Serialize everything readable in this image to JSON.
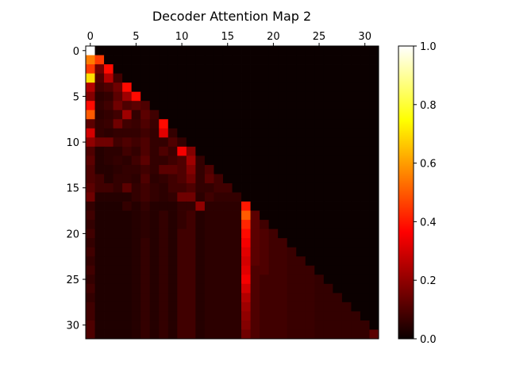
{
  "chart_data": {
    "type": "heatmap",
    "title": "Decoder Attention Map 2",
    "xlabel": "",
    "ylabel": "",
    "rows": 32,
    "cols": 32,
    "x_ticks": [
      0,
      5,
      10,
      15,
      20,
      25,
      30
    ],
    "y_ticks": [
      0,
      5,
      10,
      15,
      20,
      25,
      30
    ],
    "x_axis_position": "top",
    "colormap": "hot",
    "colorbar": {
      "min": 0.0,
      "max": 1.0,
      "ticks": [
        "0.0",
        "0.2",
        "0.4",
        "0.6",
        "0.8",
        "1.0"
      ]
    },
    "masking": "causal (upper triangle zero)",
    "values": [
      [
        1.0,
        0,
        0,
        0,
        0,
        0,
        0,
        0,
        0,
        0,
        0,
        0,
        0,
        0,
        0,
        0,
        0,
        0,
        0,
        0,
        0,
        0,
        0,
        0,
        0,
        0,
        0,
        0,
        0,
        0,
        0,
        0
      ],
      [
        0.55,
        0.45,
        0,
        0,
        0,
        0,
        0,
        0,
        0,
        0,
        0,
        0,
        0,
        0,
        0,
        0,
        0,
        0,
        0,
        0,
        0,
        0,
        0,
        0,
        0,
        0,
        0,
        0,
        0,
        0,
        0,
        0
      ],
      [
        0.45,
        0.15,
        0.38,
        0,
        0,
        0,
        0,
        0,
        0,
        0,
        0,
        0,
        0,
        0,
        0,
        0,
        0,
        0,
        0,
        0,
        0,
        0,
        0,
        0,
        0,
        0,
        0,
        0,
        0,
        0,
        0,
        0
      ],
      [
        0.7,
        0.1,
        0.25,
        0.08,
        0,
        0,
        0,
        0,
        0,
        0,
        0,
        0,
        0,
        0,
        0,
        0,
        0,
        0,
        0,
        0,
        0,
        0,
        0,
        0,
        0,
        0,
        0,
        0,
        0,
        0,
        0,
        0
      ],
      [
        0.25,
        0.08,
        0.1,
        0.15,
        0.38,
        0,
        0,
        0,
        0,
        0,
        0,
        0,
        0,
        0,
        0,
        0,
        0,
        0,
        0,
        0,
        0,
        0,
        0,
        0,
        0,
        0,
        0,
        0,
        0,
        0,
        0,
        0
      ],
      [
        0.18,
        0.05,
        0.06,
        0.12,
        0.22,
        0.38,
        0,
        0,
        0,
        0,
        0,
        0,
        0,
        0,
        0,
        0,
        0,
        0,
        0,
        0,
        0,
        0,
        0,
        0,
        0,
        0,
        0,
        0,
        0,
        0,
        0,
        0
      ],
      [
        0.38,
        0.06,
        0.08,
        0.15,
        0.1,
        0.12,
        0.1,
        0,
        0,
        0,
        0,
        0,
        0,
        0,
        0,
        0,
        0,
        0,
        0,
        0,
        0,
        0,
        0,
        0,
        0,
        0,
        0,
        0,
        0,
        0,
        0,
        0
      ],
      [
        0.5,
        0.05,
        0.06,
        0.08,
        0.22,
        0.06,
        0.12,
        0.08,
        0,
        0,
        0,
        0,
        0,
        0,
        0,
        0,
        0,
        0,
        0,
        0,
        0,
        0,
        0,
        0,
        0,
        0,
        0,
        0,
        0,
        0,
        0,
        0
      ],
      [
        0.12,
        0.06,
        0.07,
        0.15,
        0.08,
        0.07,
        0.1,
        0.07,
        0.38,
        0,
        0,
        0,
        0,
        0,
        0,
        0,
        0,
        0,
        0,
        0,
        0,
        0,
        0,
        0,
        0,
        0,
        0,
        0,
        0,
        0,
        0,
        0
      ],
      [
        0.3,
        0.06,
        0.05,
        0.06,
        0.06,
        0.06,
        0.08,
        0.06,
        0.32,
        0.06,
        0,
        0,
        0,
        0,
        0,
        0,
        0,
        0,
        0,
        0,
        0,
        0,
        0,
        0,
        0,
        0,
        0,
        0,
        0,
        0,
        0,
        0
      ],
      [
        0.2,
        0.15,
        0.15,
        0.08,
        0.1,
        0.08,
        0.1,
        0.06,
        0.06,
        0.1,
        0.06,
        0,
        0,
        0,
        0,
        0,
        0,
        0,
        0,
        0,
        0,
        0,
        0,
        0,
        0,
        0,
        0,
        0,
        0,
        0,
        0,
        0
      ],
      [
        0.1,
        0.04,
        0.05,
        0.05,
        0.08,
        0.06,
        0.1,
        0.06,
        0.1,
        0.07,
        0.35,
        0.18,
        0,
        0,
        0,
        0,
        0,
        0,
        0,
        0,
        0,
        0,
        0,
        0,
        0,
        0,
        0,
        0,
        0,
        0,
        0,
        0
      ],
      [
        0.12,
        0.04,
        0.05,
        0.06,
        0.05,
        0.08,
        0.12,
        0.06,
        0.06,
        0.08,
        0.1,
        0.22,
        0.06,
        0,
        0,
        0,
        0,
        0,
        0,
        0,
        0,
        0,
        0,
        0,
        0,
        0,
        0,
        0,
        0,
        0,
        0,
        0
      ],
      [
        0.1,
        0.04,
        0.04,
        0.05,
        0.06,
        0.06,
        0.08,
        0.06,
        0.12,
        0.12,
        0.1,
        0.18,
        0.06,
        0.1,
        0,
        0,
        0,
        0,
        0,
        0,
        0,
        0,
        0,
        0,
        0,
        0,
        0,
        0,
        0,
        0,
        0,
        0
      ],
      [
        0.1,
        0.08,
        0.04,
        0.06,
        0.06,
        0.05,
        0.1,
        0.05,
        0.06,
        0.08,
        0.1,
        0.15,
        0.06,
        0.12,
        0.08,
        0,
        0,
        0,
        0,
        0,
        0,
        0,
        0,
        0,
        0,
        0,
        0,
        0,
        0,
        0,
        0,
        0
      ],
      [
        0.12,
        0.08,
        0.08,
        0.06,
        0.12,
        0.06,
        0.08,
        0.06,
        0.05,
        0.08,
        0.08,
        0.1,
        0.06,
        0.06,
        0.08,
        0.08,
        0,
        0,
        0,
        0,
        0,
        0,
        0,
        0,
        0,
        0,
        0,
        0,
        0,
        0,
        0,
        0
      ],
      [
        0.15,
        0.04,
        0.04,
        0.04,
        0.04,
        0.06,
        0.08,
        0.06,
        0.05,
        0.06,
        0.15,
        0.15,
        0.05,
        0.08,
        0.06,
        0.06,
        0.06,
        0,
        0,
        0,
        0,
        0,
        0,
        0,
        0,
        0,
        0,
        0,
        0,
        0,
        0,
        0
      ],
      [
        0.06,
        0.03,
        0.03,
        0.03,
        0.06,
        0.04,
        0.06,
        0.04,
        0.04,
        0.04,
        0.06,
        0.06,
        0.2,
        0.05,
        0.05,
        0.05,
        0.05,
        0.4,
        0,
        0,
        0,
        0,
        0,
        0,
        0,
        0,
        0,
        0,
        0,
        0,
        0,
        0
      ],
      [
        0.08,
        0.03,
        0.03,
        0.03,
        0.03,
        0.04,
        0.05,
        0.04,
        0.06,
        0.04,
        0.06,
        0.08,
        0.04,
        0.05,
        0.05,
        0.05,
        0.05,
        0.5,
        0.12,
        0,
        0,
        0,
        0,
        0,
        0,
        0,
        0,
        0,
        0,
        0,
        0,
        0
      ],
      [
        0.06,
        0.03,
        0.03,
        0.03,
        0.03,
        0.04,
        0.05,
        0.04,
        0.06,
        0.04,
        0.06,
        0.08,
        0.04,
        0.05,
        0.05,
        0.05,
        0.05,
        0.42,
        0.12,
        0.08,
        0,
        0,
        0,
        0,
        0,
        0,
        0,
        0,
        0,
        0,
        0,
        0
      ],
      [
        0.08,
        0.03,
        0.03,
        0.03,
        0.03,
        0.04,
        0.05,
        0.04,
        0.06,
        0.04,
        0.08,
        0.08,
        0.04,
        0.05,
        0.05,
        0.05,
        0.05,
        0.38,
        0.12,
        0.1,
        0.08,
        0,
        0,
        0,
        0,
        0,
        0,
        0,
        0,
        0,
        0,
        0
      ],
      [
        0.06,
        0.03,
        0.03,
        0.03,
        0.03,
        0.04,
        0.06,
        0.04,
        0.06,
        0.04,
        0.08,
        0.08,
        0.04,
        0.05,
        0.05,
        0.05,
        0.05,
        0.35,
        0.12,
        0.1,
        0.08,
        0.08,
        0,
        0,
        0,
        0,
        0,
        0,
        0,
        0,
        0,
        0
      ],
      [
        0.08,
        0.03,
        0.03,
        0.03,
        0.03,
        0.04,
        0.06,
        0.04,
        0.06,
        0.04,
        0.08,
        0.08,
        0.04,
        0.05,
        0.05,
        0.05,
        0.05,
        0.32,
        0.12,
        0.1,
        0.08,
        0.08,
        0.07,
        0,
        0,
        0,
        0,
        0,
        0,
        0,
        0,
        0
      ],
      [
        0.06,
        0.03,
        0.03,
        0.03,
        0.03,
        0.04,
        0.06,
        0.04,
        0.06,
        0.04,
        0.08,
        0.08,
        0.04,
        0.05,
        0.05,
        0.05,
        0.05,
        0.3,
        0.12,
        0.1,
        0.08,
        0.08,
        0.07,
        0.07,
        0,
        0,
        0,
        0,
        0,
        0,
        0,
        0
      ],
      [
        0.08,
        0.03,
        0.03,
        0.03,
        0.03,
        0.04,
        0.06,
        0.04,
        0.06,
        0.04,
        0.08,
        0.08,
        0.04,
        0.05,
        0.05,
        0.05,
        0.05,
        0.32,
        0.1,
        0.1,
        0.08,
        0.08,
        0.07,
        0.07,
        0.07,
        0,
        0,
        0,
        0,
        0,
        0,
        0
      ],
      [
        0.06,
        0.03,
        0.03,
        0.03,
        0.03,
        0.04,
        0.06,
        0.04,
        0.06,
        0.04,
        0.08,
        0.08,
        0.04,
        0.05,
        0.05,
        0.05,
        0.05,
        0.35,
        0.1,
        0.08,
        0.08,
        0.08,
        0.07,
        0.07,
        0.07,
        0.06,
        0,
        0,
        0,
        0,
        0,
        0
      ],
      [
        0.08,
        0.03,
        0.03,
        0.03,
        0.03,
        0.04,
        0.06,
        0.04,
        0.06,
        0.04,
        0.08,
        0.08,
        0.04,
        0.05,
        0.05,
        0.05,
        0.05,
        0.3,
        0.1,
        0.08,
        0.08,
        0.08,
        0.07,
        0.07,
        0.07,
        0.06,
        0.06,
        0,
        0,
        0,
        0,
        0
      ],
      [
        0.06,
        0.03,
        0.03,
        0.03,
        0.03,
        0.04,
        0.06,
        0.04,
        0.06,
        0.04,
        0.08,
        0.08,
        0.04,
        0.05,
        0.05,
        0.05,
        0.05,
        0.25,
        0.1,
        0.08,
        0.08,
        0.08,
        0.07,
        0.07,
        0.07,
        0.06,
        0.06,
        0.06,
        0,
        0,
        0,
        0
      ],
      [
        0.08,
        0.03,
        0.03,
        0.03,
        0.03,
        0.04,
        0.06,
        0.04,
        0.06,
        0.04,
        0.08,
        0.08,
        0.04,
        0.05,
        0.05,
        0.05,
        0.05,
        0.22,
        0.1,
        0.08,
        0.08,
        0.08,
        0.07,
        0.07,
        0.07,
        0.06,
        0.06,
        0.06,
        0.06,
        0,
        0,
        0
      ],
      [
        0.08,
        0.03,
        0.03,
        0.03,
        0.03,
        0.04,
        0.06,
        0.04,
        0.06,
        0.04,
        0.08,
        0.08,
        0.04,
        0.05,
        0.05,
        0.05,
        0.05,
        0.2,
        0.1,
        0.08,
        0.08,
        0.08,
        0.07,
        0.07,
        0.07,
        0.06,
        0.06,
        0.06,
        0.06,
        0.06,
        0,
        0
      ],
      [
        0.1,
        0.03,
        0.03,
        0.03,
        0.03,
        0.04,
        0.06,
        0.04,
        0.06,
        0.04,
        0.08,
        0.08,
        0.04,
        0.05,
        0.05,
        0.05,
        0.05,
        0.18,
        0.1,
        0.08,
        0.08,
        0.08,
        0.07,
        0.07,
        0.07,
        0.06,
        0.06,
        0.06,
        0.06,
        0.06,
        0.06,
        0
      ],
      [
        0.1,
        0.03,
        0.03,
        0.03,
        0.03,
        0.04,
        0.06,
        0.04,
        0.06,
        0.04,
        0.08,
        0.08,
        0.04,
        0.05,
        0.05,
        0.05,
        0.05,
        0.15,
        0.1,
        0.08,
        0.08,
        0.08,
        0.07,
        0.07,
        0.07,
        0.06,
        0.06,
        0.06,
        0.06,
        0.06,
        0.06,
        0.12
      ]
    ]
  }
}
